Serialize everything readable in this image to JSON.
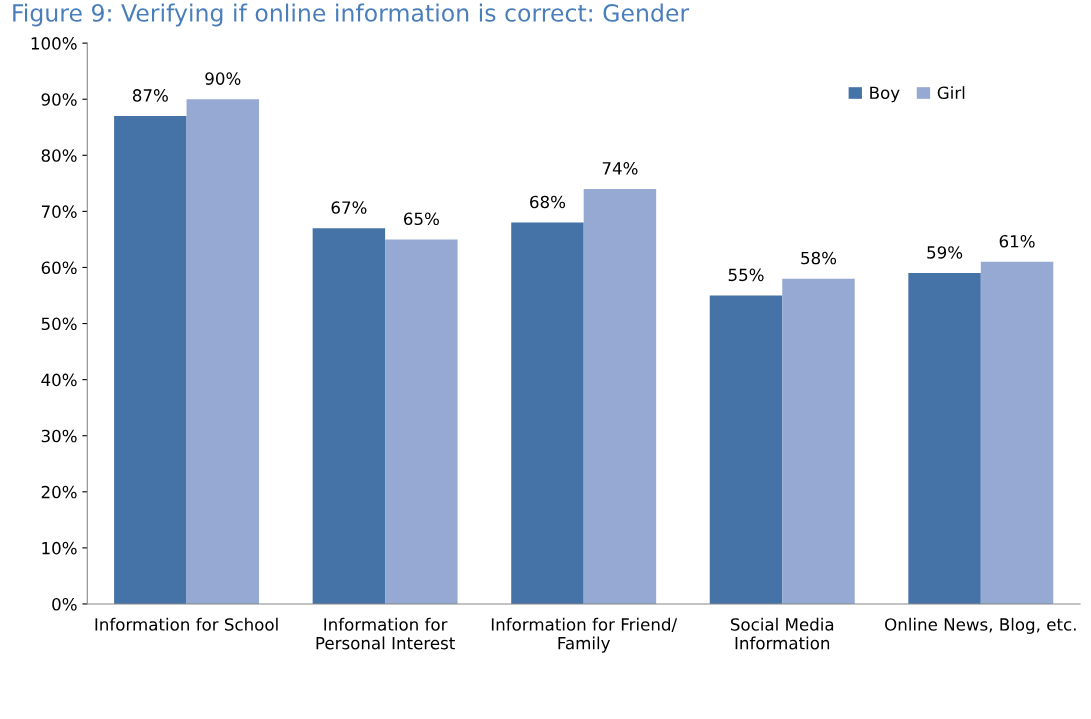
{
  "chart_data": {
    "type": "bar",
    "title": "Figure 9: Verifying if online information is correct: Gender",
    "categories": [
      "Information for School",
      "Information for\nPersonal Interest",
      "Information for Friend/\nFamily",
      "Social Media\nInformation",
      "Online News, Blog, etc."
    ],
    "series": [
      {
        "name": "Boy",
        "color": "#4673a7",
        "values": [
          87,
          67,
          68,
          55,
          59
        ],
        "value_labels": [
          "87%",
          "67%",
          "68%",
          "55%",
          "59%"
        ]
      },
      {
        "name": "Girl",
        "color": "#95a9d2",
        "values": [
          90,
          65,
          74,
          58,
          61
        ],
        "value_labels": [
          "90%",
          "65%",
          "74%",
          "58%",
          "61%"
        ]
      }
    ],
    "ylim": [
      0,
      100
    ],
    "yticks": [
      {
        "value": 0,
        "label": "0%"
      },
      {
        "value": 10,
        "label": "10%"
      },
      {
        "value": 20,
        "label": "20%"
      },
      {
        "value": 30,
        "label": "30%"
      },
      {
        "value": 40,
        "label": "40%"
      },
      {
        "value": 50,
        "label": "50%"
      },
      {
        "value": 60,
        "label": "60%"
      },
      {
        "value": 70,
        "label": "70%"
      },
      {
        "value": 80,
        "label": "80%"
      },
      {
        "value": 90,
        "label": "90%"
      },
      {
        "value": 100,
        "label": "100%"
      }
    ],
    "grid": false,
    "legend": "top right"
  }
}
